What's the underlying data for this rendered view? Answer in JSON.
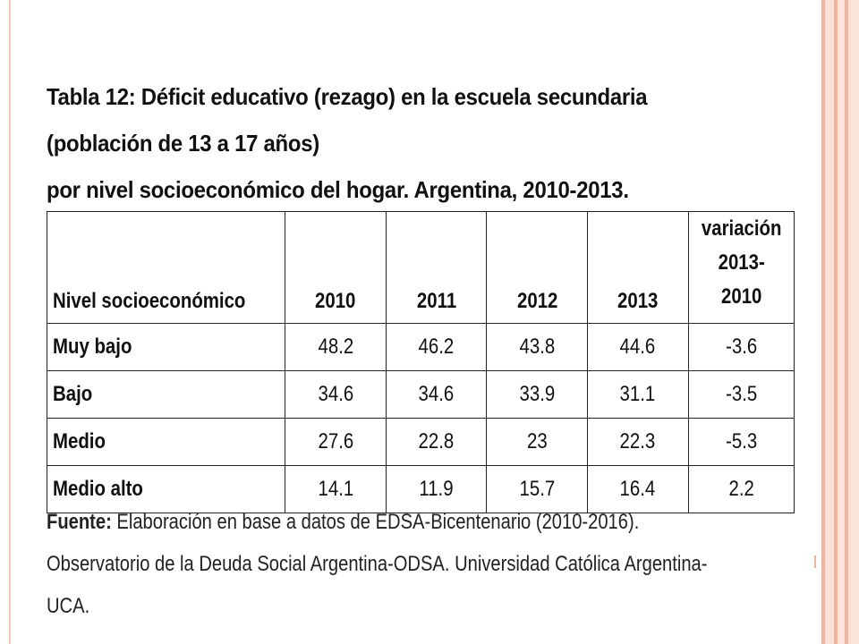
{
  "title": {
    "line1": "Tabla 12: Déficit educativo (rezago) en la escuela secundaria (población de 13 a 17 años)",
    "line2": "por nivel socioeconómico del hogar. Argentina, 2010-2013."
  },
  "table": {
    "headers": {
      "label": "Nivel socioeconómico",
      "years": [
        "2010",
        "2011",
        "2012",
        "2013"
      ],
      "variation_line1": "variación 2013-",
      "variation_line2": "2010"
    },
    "rows": [
      {
        "label": "Muy bajo",
        "values": [
          "48.2",
          "46.2",
          "43.8",
          "44.6"
        ],
        "variation": "-3.6"
      },
      {
        "label": "Bajo",
        "values": [
          "34.6",
          "34.6",
          "33.9",
          "31.1"
        ],
        "variation": "-3.5"
      },
      {
        "label": "Medio",
        "values": [
          "27.6",
          "22.8",
          "23",
          "22.3"
        ],
        "variation": "-5.3"
      },
      {
        "label": "Medio alto",
        "values": [
          "14.1",
          "11.9",
          "15.7",
          "16.4"
        ],
        "variation": "2.2"
      }
    ]
  },
  "source": {
    "label": "Fuente:",
    "text": " Elaboración en base a datos de EDSA-Bicentenario (2010-2016). Observatorio de la Deuda Social Argentina-ODSA. Universidad Católica Argentina-UCA."
  },
  "colors": {
    "frame_accent": "#f1b49f",
    "frame_light": "#fbe3da",
    "text": "#111111"
  }
}
